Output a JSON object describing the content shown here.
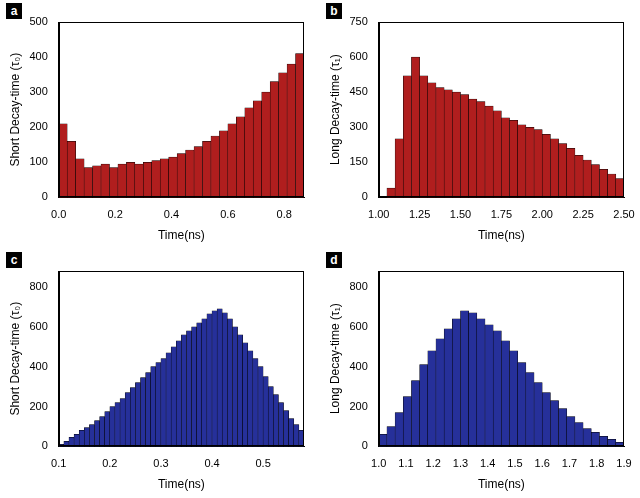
{
  "chart_data": [
    {
      "type": "histogram",
      "panel": "a",
      "color": "#b01e1e",
      "grid": false,
      "x_label": "Time(ns)",
      "y_label": "Short Decay-time (τ₀)",
      "xlim": [
        0,
        0.87
      ],
      "ylim": [
        0,
        500
      ],
      "xticks": [
        {
          "value": 0,
          "label": "0.0"
        },
        0.2,
        0.4,
        0.6,
        0.8
      ],
      "yticks": [
        0,
        100,
        200,
        300,
        400,
        500
      ],
      "bins": [
        0,
        0.03,
        0.06,
        0.09,
        0.12,
        0.15,
        0.18,
        0.21,
        0.24,
        0.27,
        0.3,
        0.33,
        0.36,
        0.39,
        0.42,
        0.45,
        0.48,
        0.51,
        0.54,
        0.57,
        0.6,
        0.63,
        0.66,
        0.69,
        0.72,
        0.75,
        0.78,
        0.81,
        0.84,
        0.87
      ],
      "values": [
        210,
        160,
        110,
        85,
        90,
        95,
        85,
        95,
        100,
        95,
        100,
        105,
        110,
        115,
        125,
        135,
        145,
        160,
        175,
        190,
        210,
        230,
        255,
        275,
        300,
        330,
        355,
        380,
        410
      ]
    },
    {
      "type": "histogram",
      "panel": "b",
      "color": "#b01e1e",
      "grid": false,
      "x_label": "Time(ns)",
      "y_label": "Long Decay-time (τ₁)",
      "xlim": [
        1,
        2.5
      ],
      "ylim": [
        0,
        750
      ],
      "xticks": [
        {
          "value": 1,
          "label": "1.00"
        },
        1.25,
        {
          "value": 1.5,
          "label": "1.50"
        },
        1.75,
        {
          "value": 2,
          "label": "2.00"
        },
        2.25,
        {
          "value": 2.5,
          "label": "2.50"
        }
      ],
      "yticks": [
        0,
        150,
        300,
        450,
        600,
        750
      ],
      "bins": [
        1,
        1.05,
        1.1,
        1.15,
        1.2,
        1.25,
        1.3,
        1.35,
        1.4,
        1.45,
        1.5,
        1.55,
        1.6,
        1.65,
        1.7,
        1.75,
        1.8,
        1.85,
        1.9,
        1.95,
        2,
        2.05,
        2.1,
        2.15,
        2.2,
        2.25,
        2.3,
        2.35,
        2.4,
        2.45,
        2.5
      ],
      "values": [
        0,
        40,
        250,
        520,
        600,
        520,
        490,
        470,
        460,
        450,
        440,
        420,
        410,
        390,
        370,
        340,
        330,
        310,
        300,
        290,
        270,
        250,
        230,
        210,
        180,
        160,
        140,
        120,
        100,
        80
      ]
    },
    {
      "type": "histogram",
      "panel": "c",
      "color": "#26309a",
      "grid": false,
      "x_label": "Time(ns)",
      "y_label": "Short Decay-time (τ₀)",
      "xlim": [
        0.1,
        0.58
      ],
      "ylim": [
        0,
        880
      ],
      "xticks": [
        0.1,
        0.2,
        0.3,
        0.4,
        0.5
      ],
      "yticks": [
        0,
        200,
        400,
        600,
        800
      ],
      "bins": [
        0.1,
        0.11,
        0.12,
        0.13,
        0.14,
        0.15,
        0.16,
        0.17,
        0.18,
        0.19,
        0.2,
        0.21,
        0.22,
        0.23,
        0.24,
        0.25,
        0.26,
        0.27,
        0.28,
        0.29,
        0.3,
        0.31,
        0.32,
        0.33,
        0.34,
        0.35,
        0.36,
        0.37,
        0.38,
        0.39,
        0.4,
        0.41,
        0.42,
        0.43,
        0.44,
        0.45,
        0.46,
        0.47,
        0.48,
        0.49,
        0.5,
        0.51,
        0.52,
        0.53,
        0.54,
        0.55,
        0.56,
        0.57,
        0.58
      ],
      "values": [
        10,
        25,
        45,
        60,
        80,
        95,
        110,
        130,
        150,
        175,
        200,
        220,
        240,
        270,
        295,
        320,
        345,
        370,
        400,
        420,
        440,
        470,
        500,
        530,
        560,
        580,
        600,
        620,
        640,
        665,
        680,
        690,
        670,
        640,
        600,
        560,
        520,
        480,
        440,
        400,
        350,
        300,
        260,
        220,
        180,
        140,
        110,
        80
      ]
    },
    {
      "type": "histogram",
      "panel": "d",
      "color": "#26309a",
      "grid": false,
      "x_label": "Time(ns)",
      "y_label": "Long Decay-time (τ₁)",
      "xlim": [
        1,
        1.9
      ],
      "ylim": [
        0,
        880
      ],
      "xticks": [
        {
          "value": 1,
          "label": "1.0"
        },
        1.1,
        1.2,
        1.3,
        1.4,
        1.5,
        1.6,
        1.7,
        1.8,
        1.9
      ],
      "yticks": [
        0,
        200,
        400,
        600,
        800
      ],
      "bins": [
        1,
        1.03,
        1.06,
        1.09,
        1.12,
        1.15,
        1.18,
        1.21,
        1.24,
        1.27,
        1.3,
        1.33,
        1.36,
        1.39,
        1.42,
        1.45,
        1.48,
        1.51,
        1.54,
        1.57,
        1.6,
        1.63,
        1.66,
        1.69,
        1.72,
        1.75,
        1.78,
        1.81,
        1.84,
        1.87,
        1.9
      ],
      "values": [
        60,
        100,
        170,
        250,
        330,
        410,
        480,
        540,
        590,
        640,
        680,
        670,
        640,
        610,
        580,
        530,
        480,
        420,
        370,
        320,
        270,
        230,
        190,
        150,
        120,
        90,
        70,
        50,
        35,
        20
      ]
    }
  ]
}
